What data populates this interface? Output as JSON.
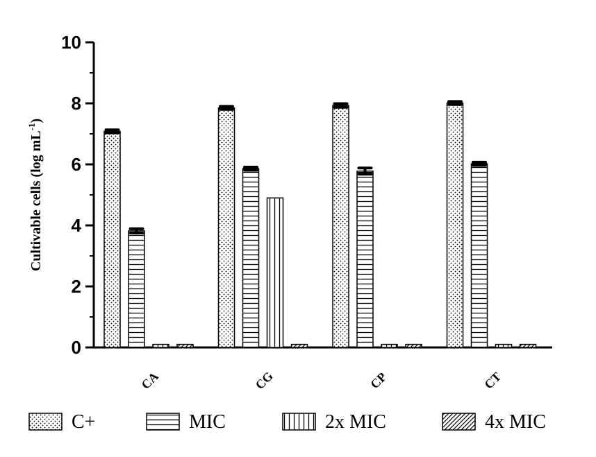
{
  "chart_data": {
    "type": "bar",
    "categories": [
      "CA",
      "CG",
      "CP",
      "CT"
    ],
    "series": [
      {
        "name": "C+",
        "values": [
          7.08,
          7.85,
          7.93,
          8.01
        ],
        "errors": [
          0.05,
          0.05,
          0.06,
          0.05
        ],
        "pattern": "dots"
      },
      {
        "name": "MIC",
        "values": [
          3.82,
          5.86,
          5.78,
          6.02
        ],
        "errors": [
          0.07,
          0.05,
          0.1,
          0.05
        ],
        "pattern": "hlines"
      },
      {
        "name": "2x MIC",
        "values": [
          0.1,
          4.9,
          0.1,
          0.1
        ],
        "errors": [
          0,
          0,
          0,
          0
        ],
        "pattern": "vlines"
      },
      {
        "name": "4x MIC",
        "values": [
          0.1,
          0.1,
          0.1,
          0.1
        ],
        "errors": [
          0,
          0,
          0,
          0
        ],
        "pattern": "diag"
      }
    ],
    "ylabel": "Cultivable cells (log mL",
    "ylabel_sup": "-1",
    "ylabel_close": ")",
    "ylim": [
      0,
      10
    ],
    "yticks": [
      "0",
      "2",
      "4",
      "6",
      "8",
      "10"
    ],
    "legend_position": "bottom",
    "grid": false
  }
}
